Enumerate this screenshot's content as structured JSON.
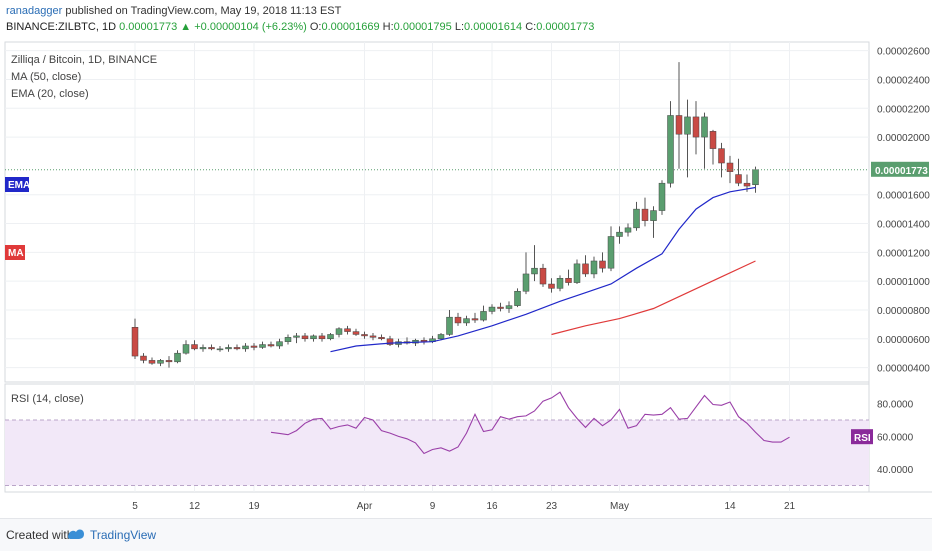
{
  "header": {
    "author": "ranadagger",
    "published_text": "published on TradingView.com, May 19, 2018 11:13 EST",
    "symbol": "BINANCE:ZILBTC, 1D",
    "last": "0.00001773",
    "change": "+0.00000104 (+6.23%)",
    "o_label": "O:",
    "o": "0.00001669",
    "h_label": "H:",
    "h": "0.00001795",
    "l_label": "L:",
    "l": "0.00001614",
    "c_label": "C:",
    "c": "0.00001773"
  },
  "legend": {
    "title": "Zilliqa / Bitcoin, 1D, BINANCE",
    "ma": "MA (50, close)",
    "ema": "EMA (20, close)",
    "rsi": "RSI (14, close)"
  },
  "badges": {
    "ema": "EMA",
    "ma": "MA",
    "rsi": "RSI",
    "price": "0.00001773"
  },
  "colors": {
    "up": "#5a9e6f",
    "down": "#c94a44",
    "ema": "#2128c9",
    "ma": "#e03a3a",
    "rsi": "#9a3fa8",
    "rsi_band": "#f2e8f8"
  },
  "footer": {
    "created": "Created with",
    "brand": "TradingView"
  },
  "chart_data": {
    "type": "candlestick",
    "title": "Zilliqa / Bitcoin, 1D, BINANCE",
    "price_axis": {
      "ylim": [
        3e-06,
        2.66e-05
      ],
      "ticks": [
        "0.00000400",
        "0.00000600",
        "0.00000800",
        "0.00001000",
        "0.00001200",
        "0.00001400",
        "0.00001600",
        "0.00002000",
        "0.00002200",
        "0.00002400",
        "0.00002600"
      ]
    },
    "time_axis": {
      "first_day": "Mar 5",
      "ticks": [
        {
          "d": 0,
          "label": "5"
        },
        {
          "d": 7,
          "label": "12"
        },
        {
          "d": 14,
          "label": "19"
        },
        {
          "d": 27,
          "label": "Apr"
        },
        {
          "d": 35,
          "label": "9"
        },
        {
          "d": 42,
          "label": "16"
        },
        {
          "d": 49,
          "label": "23"
        },
        {
          "d": 57,
          "label": "May"
        },
        {
          "d": 70,
          "label": "14"
        },
        {
          "d": 77,
          "label": "21"
        }
      ]
    },
    "candles": [
      [
        6.8e-06,
        7.4e-06,
        4.6e-06,
        4.8e-06
      ],
      [
        4.8e-06,
        5e-06,
        4.3e-06,
        4.5e-06
      ],
      [
        4.5e-06,
        4.7e-06,
        4.2e-06,
        4.3e-06
      ],
      [
        4.3e-06,
        4.6e-06,
        4.1e-06,
        4.5e-06
      ],
      [
        4.5e-06,
        4.8e-06,
        4e-06,
        4.4e-06
      ],
      [
        4.4e-06,
        5.2e-06,
        4.3e-06,
        5e-06
      ],
      [
        5e-06,
        5.9e-06,
        4.9e-06,
        5.6e-06
      ],
      [
        5.6e-06,
        5.9e-06,
        5.2e-06,
        5.3e-06
      ],
      [
        5.3e-06,
        5.6e-06,
        5.1e-06,
        5.4e-06
      ],
      [
        5.4e-06,
        5.6e-06,
        5.2e-06,
        5.3e-06
      ],
      [
        5.3e-06,
        5.5e-06,
        5.1e-06,
        5.3e-06
      ],
      [
        5.3e-06,
        5.6e-06,
        5.1e-06,
        5.4e-06
      ],
      [
        5.4e-06,
        5.6e-06,
        5.2e-06,
        5.3e-06
      ],
      [
        5.3e-06,
        5.7e-06,
        5.1e-06,
        5.5e-06
      ],
      [
        5.5e-06,
        5.7e-06,
        5.2e-06,
        5.4e-06
      ],
      [
        5.4e-06,
        5.8e-06,
        5.3e-06,
        5.6e-06
      ],
      [
        5.6e-06,
        5.8e-06,
        5.4e-06,
        5.5e-06
      ],
      [
        5.5e-06,
        6e-06,
        5.3e-06,
        5.8e-06
      ],
      [
        5.8e-06,
        6.3e-06,
        5.6e-06,
        6.1e-06
      ],
      [
        6.1e-06,
        6.4e-06,
        5.7e-06,
        6.2e-06
      ],
      [
        6.2e-06,
        6.4e-06,
        5.8e-06,
        6e-06
      ],
      [
        6e-06,
        6.3e-06,
        5.8e-06,
        6.2e-06
      ],
      [
        6.2e-06,
        6.4e-06,
        5.8e-06,
        6e-06
      ],
      [
        6e-06,
        6.4e-06,
        5.9e-06,
        6.3e-06
      ],
      [
        6.3e-06,
        6.8e-06,
        6.1e-06,
        6.7e-06
      ],
      [
        6.7e-06,
        6.9e-06,
        6.3e-06,
        6.5e-06
      ],
      [
        6.5e-06,
        6.7e-06,
        6.2e-06,
        6.3e-06
      ],
      [
        6.3e-06,
        6.5e-06,
        6e-06,
        6.2e-06
      ],
      [
        6.2e-06,
        6.4e-06,
        5.9e-06,
        6.1e-06
      ],
      [
        6.1e-06,
        6.3e-06,
        5.9e-06,
        6e-06
      ],
      [
        6e-06,
        6.2e-06,
        5.5e-06,
        5.6e-06
      ],
      [
        5.6e-06,
        6e-06,
        5.4e-06,
        5.8e-06
      ],
      [
        5.8e-06,
        6.1e-06,
        5.6e-06,
        5.7e-06
      ],
      [
        5.7e-06,
        6e-06,
        5.5e-06,
        5.9e-06
      ],
      [
        5.9e-06,
        6.1e-06,
        5.6e-06,
        5.8e-06
      ],
      [
        5.8e-06,
        6.2e-06,
        5.7e-06,
        6e-06
      ],
      [
        6e-06,
        6.4e-06,
        5.9e-06,
        6.3e-06
      ],
      [
        6.3e-06,
        8e-06,
        6.2e-06,
        7.5e-06
      ],
      [
        7.5e-06,
        7.8e-06,
        6.9e-06,
        7.1e-06
      ],
      [
        7.1e-06,
        7.6e-06,
        6.9e-06,
        7.4e-06
      ],
      [
        7.4e-06,
        7.8e-06,
        7.1e-06,
        7.3e-06
      ],
      [
        7.3e-06,
        8.3e-06,
        7.2e-06,
        7.9e-06
      ],
      [
        7.9e-06,
        8.4e-06,
        7.7e-06,
        8.2e-06
      ],
      [
        8.2e-06,
        8.5e-06,
        7.9e-06,
        8.1e-06
      ],
      [
        8.1e-06,
        8.6e-06,
        7.8e-06,
        8.3e-06
      ],
      [
        8.3e-06,
        9.5e-06,
        8.2e-06,
        9.3e-06
      ],
      [
        9.3e-06,
        1.2e-05,
        9.1e-06,
        1.05e-05
      ],
      [
        1.05e-05,
        1.25e-05,
        1e-05,
        1.09e-05
      ],
      [
        1.09e-05,
        1.12e-05,
        9.6e-06,
        9.8e-06
      ],
      [
        9.8e-06,
        1.02e-05,
        9.2e-06,
        9.5e-06
      ],
      [
        9.5e-06,
        1.04e-05,
        9.3e-06,
        1.02e-05
      ],
      [
        1.02e-05,
        1.08e-05,
        9.7e-06,
        9.9e-06
      ],
      [
        9.9e-06,
        1.15e-05,
        9.8e-06,
        1.12e-05
      ],
      [
        1.12e-05,
        1.18e-05,
        1.03e-05,
        1.05e-05
      ],
      [
        1.05e-05,
        1.17e-05,
        1.02e-05,
        1.14e-05
      ],
      [
        1.14e-05,
        1.2e-05,
        1.06e-05,
        1.09e-05
      ],
      [
        1.09e-05,
        1.38e-05,
        1.07e-05,
        1.31e-05
      ],
      [
        1.31e-05,
        1.38e-05,
        1.26e-05,
        1.34e-05
      ],
      [
        1.34e-05,
        1.4e-05,
        1.31e-05,
        1.37e-05
      ],
      [
        1.37e-05,
        1.55e-05,
        1.35e-05,
        1.5e-05
      ],
      [
        1.5e-05,
        1.58e-05,
        1.38e-05,
        1.42e-05
      ],
      [
        1.42e-05,
        1.52e-05,
        1.3e-05,
        1.49e-05
      ],
      [
        1.49e-05,
        1.7e-05,
        1.46e-05,
        1.68e-05
      ],
      [
        1.68e-05,
        2.25e-05,
        1.65e-05,
        2.15e-05
      ],
      [
        2.15e-05,
        2.52e-05,
        1.78e-05,
        2.02e-05
      ],
      [
        2.02e-05,
        2.26e-05,
        1.72e-05,
        2.14e-05
      ],
      [
        2.14e-05,
        2.25e-05,
        1.88e-05,
        2e-05
      ],
      [
        2e-05,
        2.17e-05,
        1.78e-05,
        2.14e-05
      ],
      [
        2.04e-05,
        2.05e-05,
        1.81e-05,
        1.92e-05
      ],
      [
        1.92e-05,
        1.96e-05,
        1.72e-05,
        1.82e-05
      ],
      [
        1.82e-05,
        1.87e-05,
        1.68e-05,
        1.76e-05
      ],
      [
        1.74e-05,
        1.85e-05,
        1.66e-05,
        1.68e-05
      ],
      [
        1.68e-05,
        1.74e-05,
        1.62e-05,
        1.66e-05
      ],
      [
        1.669e-05,
        1.795e-05,
        1.614e-05,
        1.773e-05
      ]
    ],
    "ema20": [
      [
        23,
        5.1e-06
      ],
      [
        26,
        5.5e-06
      ],
      [
        30,
        5.7e-06
      ],
      [
        35,
        5.8e-06
      ],
      [
        38,
        6.2e-06
      ],
      [
        42,
        6.9e-06
      ],
      [
        46,
        7.7e-06
      ],
      [
        50,
        8.6e-06
      ],
      [
        53,
        9.2e-06
      ],
      [
        56,
        9.8e-06
      ],
      [
        59,
        1.09e-05
      ],
      [
        62,
        1.19e-05
      ],
      [
        64,
        1.36e-05
      ],
      [
        66,
        1.5e-05
      ],
      [
        68,
        1.58e-05
      ],
      [
        70,
        1.62e-05
      ],
      [
        73,
        1.65e-05
      ]
    ],
    "ma50": [
      [
        49,
        6.3e-06
      ],
      [
        53,
        6.9e-06
      ],
      [
        57,
        7.4e-06
      ],
      [
        61,
        8.1e-06
      ],
      [
        65,
        9.2e-06
      ],
      [
        69,
        1.03e-05
      ],
      [
        73,
        1.14e-05
      ]
    ],
    "rsi": {
      "ylim": [
        26,
        92
      ],
      "ticks": [
        "80.0000",
        "60.0000",
        "40.0000"
      ],
      "band": [
        70,
        30
      ],
      "points": [
        [
          16,
          62.5
        ],
        [
          17,
          61.8
        ],
        [
          18,
          61.0
        ],
        [
          19,
          63.5
        ],
        [
          20,
          68.0
        ],
        [
          21,
          70.5
        ],
        [
          22,
          71.0
        ],
        [
          23,
          64.5
        ],
        [
          24,
          66.0
        ],
        [
          25,
          67.0
        ],
        [
          26,
          65.0
        ],
        [
          27,
          71.5
        ],
        [
          28,
          70.0
        ],
        [
          29,
          63.5
        ],
        [
          30,
          62.0
        ],
        [
          31,
          60.0
        ],
        [
          32,
          58.5
        ],
        [
          33,
          56.0
        ],
        [
          34,
          49.5
        ],
        [
          35,
          52.0
        ],
        [
          36,
          53.0
        ],
        [
          37,
          51.0
        ],
        [
          38,
          53.5
        ],
        [
          39,
          62.0
        ],
        [
          40,
          73.5
        ],
        [
          41,
          63.0
        ],
        [
          42,
          64.0
        ],
        [
          43,
          72.0
        ],
        [
          44,
          70.5
        ],
        [
          45,
          72.0
        ],
        [
          46,
          72.5
        ],
        [
          47,
          75.5
        ],
        [
          48,
          81.5
        ],
        [
          49,
          83.5
        ],
        [
          50,
          87.0
        ],
        [
          51,
          77.5
        ],
        [
          52,
          71.0
        ],
        [
          53,
          65.5
        ],
        [
          54,
          71.0
        ],
        [
          55,
          66.5
        ],
        [
          56,
          70.0
        ],
        [
          57,
          76.5
        ],
        [
          58,
          65.0
        ],
        [
          59,
          66.5
        ],
        [
          60,
          73.5
        ],
        [
          61,
          73.0
        ],
        [
          62,
          73.5
        ],
        [
          63,
          77.5
        ],
        [
          64,
          70.5
        ],
        [
          65,
          71.0
        ],
        [
          66,
          78.0
        ],
        [
          67,
          85.0
        ],
        [
          68,
          79.5
        ],
        [
          69,
          79.0
        ],
        [
          70,
          81.0
        ],
        [
          71,
          72.0
        ],
        [
          72,
          68.0
        ],
        [
          73,
          62.5
        ],
        [
          74,
          57.5
        ],
        [
          75,
          56.5
        ],
        [
          76,
          56.5
        ],
        [
          77,
          59.5
        ]
      ]
    }
  }
}
